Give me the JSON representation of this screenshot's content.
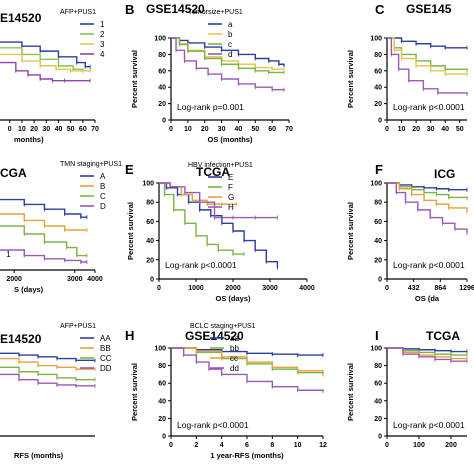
{
  "chart_data": [
    {
      "id": "A",
      "type": "line",
      "letter": "",
      "title": "E14520",
      "legend_title": "AFP+PUS1",
      "xlabel": "months)",
      "ylabel": "",
      "annotation": "",
      "xlim": [
        -8,
        70
      ],
      "ylim": [
        0,
        100
      ],
      "xticks": [],
      "yticks": [],
      "xtick_labels": [
        {
          "value": 0,
          "label": "0"
        },
        {
          "value": 10,
          "label": "10"
        },
        {
          "value": 20,
          "label": "20"
        },
        {
          "value": 30,
          "label": "30"
        },
        {
          "value": 40,
          "label": "40"
        },
        {
          "value": 50,
          "label": "50"
        },
        {
          "value": 60,
          "label": "60"
        },
        {
          "value": 70,
          "label": "70"
        }
      ],
      "series": [
        {
          "name": "1",
          "color": "#2c3e9e",
          "x": [
            -8,
            10,
            25,
            40,
            55,
            62,
            66
          ],
          "y": [
            95,
            90,
            84,
            77,
            70,
            65,
            65
          ]
        },
        {
          "name": "2",
          "color": "#8bc34a",
          "x": [
            -8,
            10,
            25,
            40,
            52,
            60,
            66
          ],
          "y": [
            88,
            80,
            74,
            66,
            62,
            60,
            60
          ]
        },
        {
          "name": "3",
          "color": "#e6c44f",
          "x": [
            -8,
            10,
            25,
            38,
            50,
            66
          ],
          "y": [
            80,
            72,
            66,
            62,
            60,
            60
          ]
        },
        {
          "name": "4",
          "color": "#8e44ad",
          "x": [
            -8,
            5,
            15,
            25,
            35,
            45,
            66
          ],
          "y": [
            70,
            60,
            55,
            50,
            48,
            48,
            48
          ]
        }
      ]
    },
    {
      "id": "B",
      "type": "line",
      "letter": "B",
      "title": "GSE14520",
      "legend_title": "Tumorsize+PUS1",
      "xlabel": "OS (months)",
      "ylabel": "Percent survival",
      "annotation": "Log-rank p=0.001",
      "xlim": [
        0,
        70
      ],
      "ylim": [
        0,
        100
      ],
      "xticks": [
        0,
        10,
        20,
        30,
        40,
        50,
        60,
        70
      ],
      "yticks": [
        0,
        20,
        40,
        60,
        80,
        100
      ],
      "xtick_labels": [],
      "series": [
        {
          "name": "a",
          "color": "#2c3e9e",
          "x": [
            0,
            5,
            10,
            20,
            30,
            40,
            50,
            58,
            64,
            67
          ],
          "y": [
            100,
            97,
            94,
            89,
            85,
            80,
            75,
            72,
            68,
            66
          ]
        },
        {
          "name": "b",
          "color": "#e6c44f",
          "x": [
            0,
            5,
            10,
            20,
            30,
            40,
            50,
            60,
            67
          ],
          "y": [
            100,
            93,
            85,
            77,
            72,
            68,
            64,
            62,
            62
          ]
        },
        {
          "name": "c",
          "color": "#7cb342",
          "x": [
            0,
            5,
            10,
            20,
            30,
            40,
            50,
            58,
            67
          ],
          "y": [
            100,
            92,
            84,
            75,
            68,
            63,
            60,
            58,
            58
          ]
        },
        {
          "name": "d",
          "color": "#9b59b6",
          "x": [
            0,
            3,
            8,
            15,
            22,
            30,
            40,
            50,
            60,
            67
          ],
          "y": [
            100,
            85,
            72,
            63,
            56,
            50,
            44,
            40,
            37,
            37
          ]
        }
      ]
    },
    {
      "id": "C",
      "type": "line",
      "letter": "C",
      "title": "GSE145",
      "legend_title": "",
      "xlabel": "",
      "ylabel": "Percent survival",
      "annotation": "Log-rank p<0.0001",
      "xlim": [
        0,
        55
      ],
      "ylim": [
        0,
        100
      ],
      "xticks": [
        0,
        10,
        20,
        30,
        40,
        50
      ],
      "yticks": [
        0,
        20,
        40,
        60,
        80,
        100
      ],
      "xtick_labels": [],
      "series": [
        {
          "name": "",
          "color": "#2c3e9e",
          "x": [
            0,
            10,
            20,
            30,
            40,
            55
          ],
          "y": [
            100,
            96,
            93,
            90,
            88,
            88
          ]
        },
        {
          "name": "",
          "color": "#7cb342",
          "x": [
            0,
            5,
            10,
            20,
            30,
            40,
            55
          ],
          "y": [
            100,
            88,
            80,
            72,
            66,
            62,
            60
          ]
        },
        {
          "name": "",
          "color": "#e6c44f",
          "x": [
            0,
            5,
            10,
            20,
            30,
            40,
            55
          ],
          "y": [
            100,
            85,
            75,
            66,
            60,
            56,
            55
          ]
        },
        {
          "name": "",
          "color": "#9b59b6",
          "x": [
            0,
            3,
            8,
            15,
            25,
            35,
            55
          ],
          "y": [
            100,
            80,
            62,
            48,
            38,
            33,
            32
          ]
        }
      ]
    },
    {
      "id": "D",
      "type": "line",
      "letter": "",
      "title": "CGA",
      "legend_title": "TMN staging+PUS1",
      "xlabel": "S (days)",
      "ylabel": "",
      "annotation": "",
      "xlim": [
        -700,
        4000
      ],
      "ylim": [
        0,
        100
      ],
      "xticks": [],
      "yticks": [],
      "xtick_labels": [
        {
          "value": 0,
          "label": "2000"
        },
        {
          "value": 2000,
          "label": ""
        },
        {
          "value": 3000,
          "label": "3000"
        },
        {
          "value": 4000,
          "label": "4000"
        }
      ],
      "series": [
        {
          "name": "A",
          "color": "#2c3e9e",
          "x": [
            -700,
            500,
            1500,
            2500,
            3300,
            3600
          ],
          "y": [
            88,
            82,
            76,
            70,
            66,
            66
          ]
        },
        {
          "name": "B",
          "color": "#e6a23c",
          "x": [
            -700,
            500,
            1500,
            2500,
            3600
          ],
          "y": [
            70,
            62,
            55,
            50,
            50
          ]
        },
        {
          "name": "C",
          "color": "#7cb342",
          "x": [
            -700,
            500,
            1500,
            2600,
            3100,
            3600
          ],
          "y": [
            55,
            45,
            35,
            28,
            18,
            18
          ]
        },
        {
          "name": "D",
          "color": "#9b59b6",
          "x": [
            -700,
            500,
            1500,
            2500,
            3300,
            3600
          ],
          "y": [
            25,
            18,
            14,
            12,
            10,
            10
          ]
        }
      ],
      "marks": [
        {
          "text": "1",
          "x": -400,
          "y": 16
        }
      ]
    },
    {
      "id": "E",
      "type": "line",
      "letter": "E",
      "title": "TCGA",
      "legend_title": "HBV infection+PUS1",
      "xlabel": "OS (days)",
      "ylabel": "Percent survival",
      "annotation": "Log-rank p<0.0001",
      "xlim": [
        0,
        4000
      ],
      "ylim": [
        0,
        100
      ],
      "xticks": [
        0,
        1000,
        2000,
        3000,
        4000
      ],
      "yticks": [
        0,
        20,
        40,
        60,
        80,
        100
      ],
      "xtick_labels": [],
      "series": [
        {
          "name": "E",
          "color": "#2c3e9e",
          "x": [
            0,
            200,
            500,
            800,
            1100,
            1400,
            1700,
            2000,
            2300,
            2600,
            2900,
            3200
          ],
          "y": [
            100,
            95,
            88,
            80,
            72,
            66,
            58,
            50,
            40,
            30,
            18,
            12
          ]
        },
        {
          "name": "F",
          "color": "#7cb342",
          "x": [
            0,
            150,
            400,
            700,
            1000,
            1300,
            1600,
            2000,
            2300
          ],
          "y": [
            100,
            88,
            72,
            58,
            45,
            36,
            30,
            26,
            26
          ]
        },
        {
          "name": "G",
          "color": "#e6a23c",
          "x": [
            0,
            300,
            600,
            900,
            1300,
            1700,
            2100
          ],
          "y": [
            100,
            96,
            88,
            82,
            78,
            78,
            78
          ]
        },
        {
          "name": "H",
          "color": "#9b59b6",
          "x": [
            0,
            300,
            700,
            1100,
            1500,
            2000,
            2600,
            3200
          ],
          "y": [
            100,
            96,
            90,
            80,
            64,
            64,
            64,
            64
          ]
        }
      ]
    },
    {
      "id": "F",
      "type": "line",
      "letter": "F",
      "title": "ICG",
      "legend_title": "",
      "xlabel": "OS (da",
      "ylabel": "Percent survival",
      "annotation": "Log-rank p<0.0001",
      "xlim": [
        0,
        1296
      ],
      "ylim": [
        0,
        100
      ],
      "xticks": [
        0,
        432,
        864,
        1296
      ],
      "yticks": [
        0,
        20,
        40,
        60,
        80,
        100
      ],
      "xtick_labels": [],
      "series": [
        {
          "name": "",
          "color": "#2c3e9e",
          "x": [
            0,
            200,
            400,
            600,
            800,
            1000,
            1296
          ],
          "y": [
            100,
            98,
            96,
            95,
            94,
            93,
            93
          ]
        },
        {
          "name": "",
          "color": "#7cb342",
          "x": [
            0,
            200,
            400,
            600,
            800,
            1000,
            1296
          ],
          "y": [
            100,
            96,
            93,
            90,
            88,
            85,
            84
          ]
        },
        {
          "name": "",
          "color": "#e6a23c",
          "x": [
            0,
            200,
            400,
            600,
            800,
            1000,
            1296
          ],
          "y": [
            100,
            94,
            88,
            82,
            78,
            74,
            70
          ]
        },
        {
          "name": "",
          "color": "#9b59b6",
          "x": [
            0,
            150,
            300,
            500,
            700,
            900,
            1100,
            1296
          ],
          "y": [
            100,
            90,
            80,
            72,
            64,
            58,
            52,
            48
          ]
        }
      ]
    },
    {
      "id": "G",
      "type": "line",
      "letter": "",
      "title": "E14520",
      "legend_title": "AFP+PUS1",
      "xlabel": "RFS (months)",
      "ylabel": "",
      "annotation": "",
      "xlim": [
        -3,
        12
      ],
      "ylim": [
        0,
        100
      ],
      "xticks": [],
      "yticks": [],
      "xtick_labels": [],
      "series": [
        {
          "name": "AA",
          "color": "#2c3e9e",
          "x": [
            -3,
            0,
            3,
            6,
            9,
            12
          ],
          "y": [
            94,
            92,
            90,
            88,
            86,
            86
          ]
        },
        {
          "name": "BB",
          "color": "#e6a23c",
          "x": [
            -3,
            0,
            3,
            6,
            9,
            12
          ],
          "y": [
            88,
            84,
            80,
            78,
            76,
            76
          ]
        },
        {
          "name": "CC",
          "color": "#7cb342",
          "x": [
            -3,
            0,
            3,
            6,
            9,
            12
          ],
          "y": [
            78,
            73,
            70,
            66,
            64,
            64
          ]
        },
        {
          "name": "DD",
          "color": "#9b59b6",
          "x": [
            -3,
            0,
            3,
            6,
            9,
            12
          ],
          "y": [
            70,
            64,
            60,
            58,
            57,
            57
          ]
        }
      ]
    },
    {
      "id": "H",
      "type": "line",
      "letter": "H",
      "title": "GSE14520",
      "legend_title": "BCLC staging+PUS1",
      "xlabel": "1 year-RFS (months)",
      "ylabel": "Percent survival",
      "annotation": "Log-rank p<0.0001",
      "xlim": [
        0,
        12
      ],
      "ylim": [
        0,
        100
      ],
      "xticks": [
        0,
        2,
        4,
        6,
        8,
        10,
        12
      ],
      "yticks": [
        0,
        20,
        40,
        60,
        80,
        100
      ],
      "xtick_labels": [],
      "series": [
        {
          "name": "aa",
          "color": "#2c3e9e",
          "x": [
            0,
            2,
            4,
            6,
            8,
            10,
            12
          ],
          "y": [
            100,
            98,
            96,
            94,
            93,
            92,
            92
          ]
        },
        {
          "name": "bb",
          "color": "#7cb342",
          "x": [
            0,
            2,
            4,
            6,
            8,
            10,
            12
          ],
          "y": [
            100,
            95,
            88,
            82,
            76,
            72,
            70
          ]
        },
        {
          "name": "cc",
          "color": "#e6a23c",
          "x": [
            0,
            2,
            4,
            6,
            8,
            10,
            12
          ],
          "y": [
            100,
            96,
            90,
            84,
            78,
            74,
            72
          ]
        },
        {
          "name": "dd",
          "color": "#9b59b6",
          "x": [
            0,
            1,
            2,
            3,
            4,
            6,
            8,
            10,
            12
          ],
          "y": [
            100,
            92,
            84,
            76,
            70,
            62,
            56,
            52,
            51
          ]
        }
      ]
    },
    {
      "id": "I",
      "type": "line",
      "letter": "I",
      "title": "TCGA",
      "legend_title": "",
      "xlabel": "",
      "ylabel": "Percent survival",
      "annotation": "Log-rank p<0.0001",
      "xlim": [
        0,
        250
      ],
      "ylim": [
        0,
        100
      ],
      "xticks": [
        0,
        100,
        200
      ],
      "yticks": [
        0,
        20,
        40,
        60,
        80,
        100
      ],
      "xtick_labels": [],
      "series": [
        {
          "name": "",
          "color": "#2c3e9e",
          "x": [
            0,
            50,
            100,
            150,
            200,
            250
          ],
          "y": [
            100,
            99,
            98,
            97,
            96,
            96
          ]
        },
        {
          "name": "",
          "color": "#7cb342",
          "x": [
            0,
            50,
            100,
            150,
            200,
            250
          ],
          "y": [
            100,
            97,
            95,
            93,
            92,
            92
          ]
        },
        {
          "name": "",
          "color": "#e6a23c",
          "x": [
            0,
            50,
            100,
            150,
            200,
            250
          ],
          "y": [
            100,
            95,
            92,
            90,
            88,
            88
          ]
        },
        {
          "name": "",
          "color": "#9b59b6",
          "x": [
            0,
            50,
            100,
            150,
            200,
            250
          ],
          "y": [
            100,
            93,
            90,
            87,
            85,
            85
          ]
        }
      ]
    }
  ]
}
